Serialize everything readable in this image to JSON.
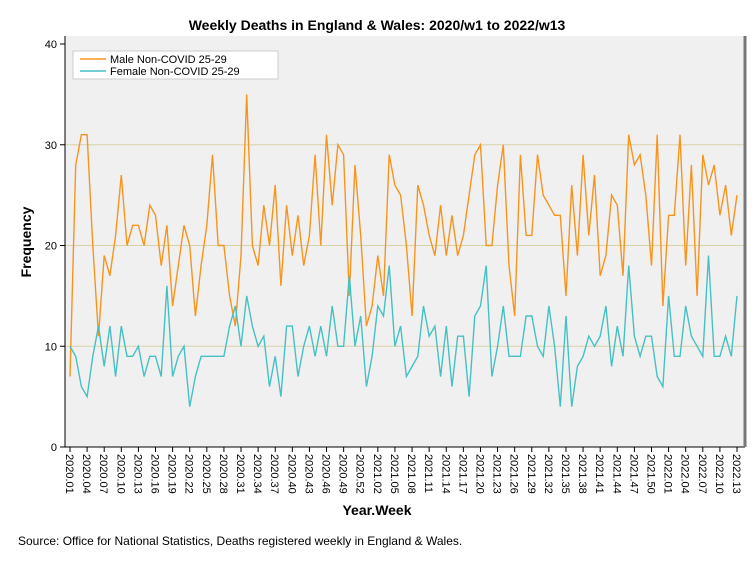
{
  "chart_data": {
    "type": "line",
    "title": "Weekly Deaths in England & Wales: 2020/w1 to 2022/w13",
    "xlabel": "Year.Week",
    "ylabel": "Frequency",
    "ylim": [
      0,
      40
    ],
    "yticks": [
      "0",
      "10",
      "20",
      "30",
      "40"
    ],
    "grid": "horizontal",
    "legend_position": "top-left",
    "xtick_labels": [
      "2020.01",
      "2020.04",
      "2020.07",
      "2020.10",
      "2020.13",
      "2020.16",
      "2020.19",
      "2020.22",
      "2020.25",
      "2020.28",
      "2020.31",
      "2020.34",
      "2020.37",
      "2020.40",
      "2020.43",
      "2020.46",
      "2020.49",
      "2020.52",
      "2021.02",
      "2021.05",
      "2021.08",
      "2021.11",
      "2021.14",
      "2021.17",
      "2021.20",
      "2021.23",
      "2021.26",
      "2021.29",
      "2021.32",
      "2021.35",
      "2021.38",
      "2021.41",
      "2021.44",
      "2021.47",
      "2021.50",
      "2022.01",
      "2022.04",
      "2022.07",
      "2022.10",
      "2022.13"
    ],
    "series": [
      {
        "name": "Male Non-COVID 25-29",
        "color": "#f7941d",
        "values": [
          7,
          28,
          31,
          31,
          20,
          11,
          19,
          17,
          21,
          27,
          20,
          22,
          22,
          20,
          24,
          23,
          18,
          22,
          14,
          18,
          22,
          20,
          13,
          18,
          22,
          29,
          20,
          20,
          15,
          12,
          19,
          35,
          20,
          18,
          24,
          20,
          26,
          16,
          24,
          19,
          23,
          18,
          21,
          29,
          20,
          31,
          24,
          30,
          29,
          15,
          28,
          21,
          12,
          14,
          19,
          15,
          29,
          26,
          25,
          20,
          13,
          26,
          24,
          21,
          19,
          24,
          19,
          23,
          19,
          21,
          25,
          29,
          30,
          20,
          20,
          26,
          30,
          18,
          13,
          29,
          21,
          21,
          29,
          25,
          24,
          23,
          23,
          15,
          26,
          19,
          29,
          21,
          27,
          17,
          19,
          25,
          24,
          17,
          31,
          28,
          29,
          25,
          18,
          31,
          14,
          23,
          23,
          31,
          18,
          28,
          15,
          29,
          26,
          28,
          23,
          26,
          21,
          25
        ]
      },
      {
        "name": "Female Non-COVID 25-29",
        "color": "#45c1c4",
        "values": [
          10,
          9,
          6,
          5,
          9,
          12,
          8,
          12,
          7,
          12,
          9,
          9,
          10,
          7,
          9,
          9,
          7,
          16,
          7,
          9,
          10,
          4,
          7,
          9,
          9,
          9,
          9,
          9,
          12,
          14,
          10,
          15,
          12,
          10,
          11,
          6,
          9,
          5,
          12,
          12,
          7,
          10,
          12,
          9,
          12,
          9,
          14,
          10,
          10,
          17,
          10,
          13,
          6,
          9,
          14,
          13,
          18,
          10,
          12,
          7,
          8,
          9,
          14,
          11,
          12,
          7,
          12,
          6,
          11,
          11,
          5,
          13,
          14,
          18,
          7,
          10,
          14,
          9,
          9,
          9,
          13,
          13,
          10,
          9,
          14,
          10,
          4,
          13,
          4,
          8,
          9,
          11,
          10,
          11,
          14,
          8,
          12,
          9,
          18,
          11,
          9,
          11,
          11,
          7,
          6,
          15,
          9,
          9,
          14,
          11,
          10,
          9,
          19,
          9,
          9,
          11,
          9,
          15
        ]
      }
    ]
  },
  "source": "Source: Office for National Statistics, Deaths registered weekly in England & Wales."
}
